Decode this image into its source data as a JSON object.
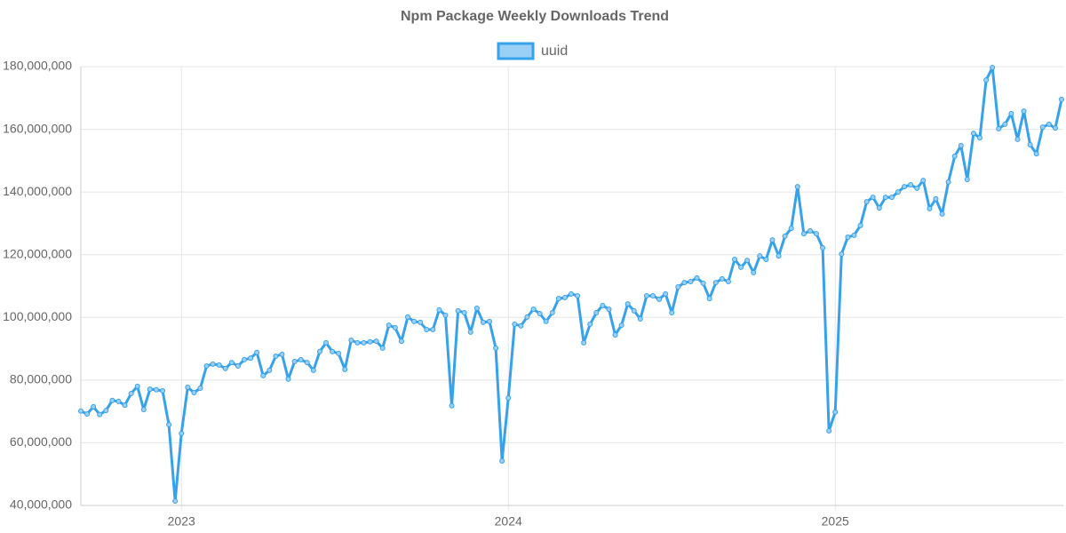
{
  "chart_data": {
    "type": "line",
    "title": "Npm Package Weekly Downloads Trend",
    "categories": [
      null,
      null,
      null,
      null,
      null,
      null,
      null,
      null,
      null,
      null,
      null,
      null,
      null,
      null,
      null,
      null,
      "2023",
      null,
      null,
      null,
      null,
      null,
      null,
      null,
      null,
      null,
      null,
      null,
      null,
      null,
      null,
      null,
      null,
      null,
      null,
      null,
      null,
      null,
      null,
      null,
      null,
      null,
      null,
      null,
      null,
      null,
      null,
      null,
      null,
      null,
      null,
      null,
      null,
      null,
      null,
      null,
      null,
      null,
      null,
      null,
      null,
      null,
      null,
      null,
      null,
      null,
      null,
      null,
      "2024",
      null,
      null,
      null,
      null,
      null,
      null,
      null,
      null,
      null,
      null,
      null,
      null,
      null,
      null,
      null,
      null,
      null,
      null,
      null,
      null,
      null,
      null,
      null,
      null,
      null,
      null,
      null,
      null,
      null,
      null,
      null,
      null,
      null,
      null,
      null,
      null,
      null,
      null,
      null,
      null,
      null,
      null,
      null,
      null,
      null,
      null,
      null,
      null,
      null,
      null,
      null,
      "2025",
      null,
      null,
      null,
      null,
      null,
      null,
      null,
      null,
      null,
      null,
      null,
      null,
      null,
      null,
      null,
      null,
      null,
      null,
      null,
      null,
      null,
      null,
      null,
      null,
      null,
      null,
      null,
      null,
      null,
      null,
      null,
      null,
      null,
      null,
      null,
      null
    ],
    "series": [
      {
        "name": "uuid",
        "color": "#36a2eb",
        "values": [
          70100000,
          69200000,
          71500000,
          69000000,
          70300000,
          73500000,
          73200000,
          72000000,
          75700000,
          78000000,
          70600000,
          77100000,
          76900000,
          76600000,
          65800000,
          41400000,
          63000000,
          77700000,
          76000000,
          77400000,
          84500000,
          85100000,
          84800000,
          83700000,
          85600000,
          84500000,
          86500000,
          87000000,
          88800000,
          81400000,
          83100000,
          87600000,
          88200000,
          80300000,
          85900000,
          86500000,
          85600000,
          83100000,
          89100000,
          91900000,
          89100000,
          88500000,
          83400000,
          92700000,
          91900000,
          91900000,
          92200000,
          92400000,
          90200000,
          97500000,
          96700000,
          92400000,
          100100000,
          98700000,
          98400000,
          96100000,
          96100000,
          102400000,
          100700000,
          71800000,
          102100000,
          101500000,
          95300000,
          102900000,
          98400000,
          98700000,
          90200000,
          54200000,
          74300000,
          97800000,
          97300000,
          100100000,
          102600000,
          101200000,
          98700000,
          101500000,
          106000000,
          106300000,
          107500000,
          106900000,
          91900000,
          97800000,
          101500000,
          103800000,
          102600000,
          94400000,
          97500000,
          104300000,
          102100000,
          99500000,
          106900000,
          106900000,
          105800000,
          107500000,
          101500000,
          109700000,
          111100000,
          111400000,
          112600000,
          110900000,
          106000000,
          111100000,
          112300000,
          111400000,
          118500000,
          116000000,
          118200000,
          114300000,
          119600000,
          118500000,
          124700000,
          119600000,
          125900000,
          128400000,
          141700000,
          126700000,
          127600000,
          126700000,
          122200000,
          63800000,
          69800000,
          120200000,
          125600000,
          126200000,
          129300000,
          136900000,
          138300000,
          134900000,
          138300000,
          138300000,
          140000000,
          141700000,
          142300000,
          141200000,
          143700000,
          134700000,
          137800000,
          133000000,
          143200000,
          151400000,
          154800000,
          144000000,
          158700000,
          157300000,
          175700000,
          179700000,
          160200000,
          161600000,
          165000000,
          156800000,
          165800000,
          155100000,
          152200000,
          160700000,
          161600000,
          160400000,
          169500000
        ]
      }
    ],
    "ylim": [
      40000000,
      180000000
    ],
    "yticks": [
      {
        "value": 40000000,
        "label": "40,000,000"
      },
      {
        "value": 60000000,
        "label": "60,000,000"
      },
      {
        "value": 80000000,
        "label": "80,000,000"
      },
      {
        "value": 100000000,
        "label": "100,000,000"
      },
      {
        "value": 120000000,
        "label": "120,000,000"
      },
      {
        "value": 140000000,
        "label": "140,000,000"
      },
      {
        "value": 160000000,
        "label": "160,000,000"
      },
      {
        "value": 180000000,
        "label": "180,000,000"
      }
    ],
    "grid": true,
    "legend": "top"
  }
}
